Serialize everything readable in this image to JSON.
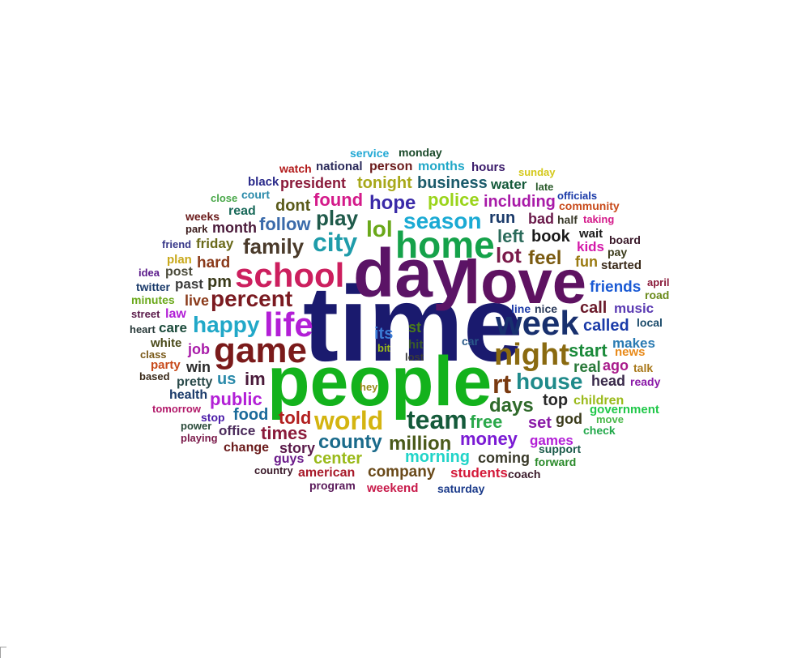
{
  "words": [
    {
      "text": "time",
      "color": "#1a1a6e"
    },
    {
      "text": "people",
      "color": "#13b21c"
    },
    {
      "text": "day",
      "color": "#5b1466"
    },
    {
      "text": "love",
      "color": "#5e1261"
    },
    {
      "text": "home",
      "color": "#15a24a"
    },
    {
      "text": "school",
      "color": "#cc1f5e"
    },
    {
      "text": "game",
      "color": "#7a1a1a"
    },
    {
      "text": "week",
      "color": "#18306e"
    },
    {
      "text": "night",
      "color": "#8a6a10"
    },
    {
      "text": "life",
      "color": "#b21fd6"
    },
    {
      "text": "city",
      "color": "#1f9caa"
    },
    {
      "text": "team",
      "color": "#145a3a"
    },
    {
      "text": "world",
      "color": "#d4b410"
    },
    {
      "text": "percent",
      "color": "#7a1a20"
    },
    {
      "text": "family",
      "color": "#4a3a2a"
    },
    {
      "text": "season",
      "color": "#1aaad4"
    },
    {
      "text": "happy",
      "color": "#21a8c8"
    },
    {
      "text": "house",
      "color": "#1f8a8a"
    },
    {
      "text": "rt",
      "color": "#7a3a10"
    },
    {
      "text": "lol",
      "color": "#6aa81a"
    },
    {
      "text": "days",
      "color": "#2f6a2a"
    },
    {
      "text": "million",
      "color": "#4a5a1a"
    },
    {
      "text": "county",
      "color": "#1a6a8a"
    },
    {
      "text": "money",
      "color": "#7a1ad4"
    },
    {
      "text": "public",
      "color": "#b21fd6"
    },
    {
      "text": "play",
      "color": "#1f5a4a"
    },
    {
      "text": "hope",
      "color": "#3a2aa8"
    },
    {
      "text": "police",
      "color": "#9ad41a"
    },
    {
      "text": "found",
      "color": "#d41a8a"
    },
    {
      "text": "business",
      "color": "#1a5a6a"
    },
    {
      "text": "tonight",
      "color": "#a8a81a"
    },
    {
      "text": "follow",
      "color": "#3a6aaa"
    },
    {
      "text": "dont",
      "color": "#5a5a1a"
    },
    {
      "text": "free",
      "color": "#2aa84a"
    },
    {
      "text": "start",
      "color": "#1a8a3a"
    },
    {
      "text": "feel",
      "color": "#7a5a10"
    },
    {
      "text": "lot",
      "color": "#7a1a4a"
    },
    {
      "text": "left",
      "color": "#2a6a5a"
    },
    {
      "text": "book",
      "color": "#1a1a1a"
    },
    {
      "text": "run",
      "color": "#1a3a6a"
    },
    {
      "text": "including",
      "color": "#a81aa8"
    },
    {
      "text": "month",
      "color": "#4a1a3a"
    },
    {
      "text": "president",
      "color": "#8a1a3a"
    },
    {
      "text": "national",
      "color": "#2a2a5a"
    },
    {
      "text": "person",
      "color": "#6a1a1a"
    },
    {
      "text": "months",
      "color": "#21a8c8"
    },
    {
      "text": "hours",
      "color": "#3a1a6a"
    },
    {
      "text": "water",
      "color": "#145a3a"
    },
    {
      "text": "morning",
      "color": "#21d4c8"
    },
    {
      "text": "company",
      "color": "#6a4a1a"
    },
    {
      "text": "coming",
      "color": "#3a3a2a"
    },
    {
      "text": "told",
      "color": "#b21f1f"
    },
    {
      "text": "times",
      "color": "#8a1a3a"
    },
    {
      "text": "food",
      "color": "#1a6a9a"
    },
    {
      "text": "im",
      "color": "#4a1a3a"
    },
    {
      "text": "us",
      "color": "#2a8aaa"
    },
    {
      "text": "pm",
      "color": "#3a3a1a"
    },
    {
      "text": "hard",
      "color": "#8a3a1a"
    },
    {
      "text": "friday",
      "color": "#6a6a1a"
    },
    {
      "text": "call",
      "color": "#6a1a2a"
    },
    {
      "text": "called",
      "color": "#1a3aa8"
    },
    {
      "text": "friends",
      "color": "#1a5ad4"
    },
    {
      "text": "music",
      "color": "#5a3ab2"
    },
    {
      "text": "makes",
      "color": "#2a7ab2"
    },
    {
      "text": "real",
      "color": "#2a7a3a"
    },
    {
      "text": "ago",
      "color": "#a81a8a"
    },
    {
      "text": "head",
      "color": "#3a2a4a"
    },
    {
      "text": "top",
      "color": "#2a2a2a"
    },
    {
      "text": "children",
      "color": "#9aba1a"
    },
    {
      "text": "set",
      "color": "#8a1aa8"
    },
    {
      "text": "god",
      "color": "#3a3a1a"
    },
    {
      "text": "games",
      "color": "#b21fd6"
    },
    {
      "text": "support",
      "color": "#1a5a4a"
    },
    {
      "text": "forward",
      "color": "#2a8a2a"
    },
    {
      "text": "students",
      "color": "#d41a3a"
    },
    {
      "text": "coach",
      "color": "#3a1a2a"
    },
    {
      "text": "weekend",
      "color": "#c81a4a"
    },
    {
      "text": "saturday",
      "color": "#1a3a8a"
    },
    {
      "text": "program",
      "color": "#5a1a5a"
    },
    {
      "text": "american",
      "color": "#a81a2a"
    },
    {
      "text": "country",
      "color": "#3a1a2a"
    },
    {
      "text": "guys",
      "color": "#6a1a8a"
    },
    {
      "text": "story",
      "color": "#5a1a4a"
    },
    {
      "text": "change",
      "color": "#6a1a1a"
    },
    {
      "text": "center",
      "color": "#9aba1a"
    },
    {
      "text": "office",
      "color": "#4a2a5a"
    },
    {
      "text": "stop",
      "color": "#4a1aa8"
    },
    {
      "text": "power",
      "color": "#2a4a3a"
    },
    {
      "text": "playing",
      "color": "#7a1a4a"
    },
    {
      "text": "tomorrow",
      "color": "#b21a6a"
    },
    {
      "text": "health",
      "color": "#1a3a6a"
    },
    {
      "text": "pretty",
      "color": "#2a4a4a"
    },
    {
      "text": "win",
      "color": "#2a2a2a"
    },
    {
      "text": "based",
      "color": "#3a2a1a"
    },
    {
      "text": "party",
      "color": "#c84a1a"
    },
    {
      "text": "class",
      "color": "#7a5a1a"
    },
    {
      "text": "white",
      "color": "#4a4a1a"
    },
    {
      "text": "job",
      "color": "#a81aa8"
    },
    {
      "text": "heart",
      "color": "#2a3a3a"
    },
    {
      "text": "care",
      "color": "#1a4a3a"
    },
    {
      "text": "street",
      "color": "#5a1a4a"
    },
    {
      "text": "law",
      "color": "#b21fd6"
    },
    {
      "text": "live",
      "color": "#8a3a1a"
    },
    {
      "text": "minutes",
      "color": "#6aa81a"
    },
    {
      "text": "past",
      "color": "#3a3a3a"
    },
    {
      "text": "twitter",
      "color": "#1a3a6a"
    },
    {
      "text": "idea",
      "color": "#5a1a8a"
    },
    {
      "text": "post",
      "color": "#4a4a3a"
    },
    {
      "text": "plan",
      "color": "#c8a81a"
    },
    {
      "text": "friend",
      "color": "#3a3a8a"
    },
    {
      "text": "park",
      "color": "#3a1a1a"
    },
    {
      "text": "weeks",
      "color": "#6a1a1a"
    },
    {
      "text": "close",
      "color": "#4aa84a"
    },
    {
      "text": "read",
      "color": "#1a6a5a"
    },
    {
      "text": "court",
      "color": "#2a8aaa"
    },
    {
      "text": "black",
      "color": "#2a2a8a"
    },
    {
      "text": "watch",
      "color": "#b21a1a"
    },
    {
      "text": "service",
      "color": "#21a8d4"
    },
    {
      "text": "monday",
      "color": "#1a4a2a"
    },
    {
      "text": "sunday",
      "color": "#d4c81a"
    },
    {
      "text": "late",
      "color": "#2a5a2a"
    },
    {
      "text": "officials",
      "color": "#1a3aa8"
    },
    {
      "text": "community",
      "color": "#c84a1a"
    },
    {
      "text": "half",
      "color": "#3a3a2a"
    },
    {
      "text": "taking",
      "color": "#d41a8a"
    },
    {
      "text": "bad",
      "color": "#6a1a4a"
    },
    {
      "text": "wait",
      "color": "#1a1a1a"
    },
    {
      "text": "board",
      "color": "#3a1a2a"
    },
    {
      "text": "pay",
      "color": "#3a3a1a"
    },
    {
      "text": "kids",
      "color": "#d41aaa"
    },
    {
      "text": "fun",
      "color": "#9a7a10"
    },
    {
      "text": "started",
      "color": "#3a2a1a"
    },
    {
      "text": "april",
      "color": "#8a1a3a"
    },
    {
      "text": "road",
      "color": "#6a8a1a"
    },
    {
      "text": "local",
      "color": "#1a4a6a"
    },
    {
      "text": "news",
      "color": "#e88a1a"
    },
    {
      "text": "talk",
      "color": "#a8781a"
    },
    {
      "text": "ready",
      "color": "#8a1aa8"
    },
    {
      "text": "government",
      "color": "#21c84a"
    },
    {
      "text": "move",
      "color": "#4ab84a"
    },
    {
      "text": "check",
      "color": "#21a84a"
    },
    {
      "text": "line",
      "color": "#1a3aa8"
    },
    {
      "text": "nice",
      "color": "#2a3a5a"
    },
    {
      "text": "its",
      "color": "#3a7ad4"
    },
    {
      "text": "st",
      "color": "#4a7a1a"
    },
    {
      "text": "hit",
      "color": "#3a5a2a"
    },
    {
      "text": "bit",
      "color": "#9aba1a"
    },
    {
      "text": "lost",
      "color": "#3a3a3a"
    },
    {
      "text": "car",
      "color": "#2a5a8a"
    },
    {
      "text": "hey",
      "color": "#9a8a1a"
    }
  ]
}
